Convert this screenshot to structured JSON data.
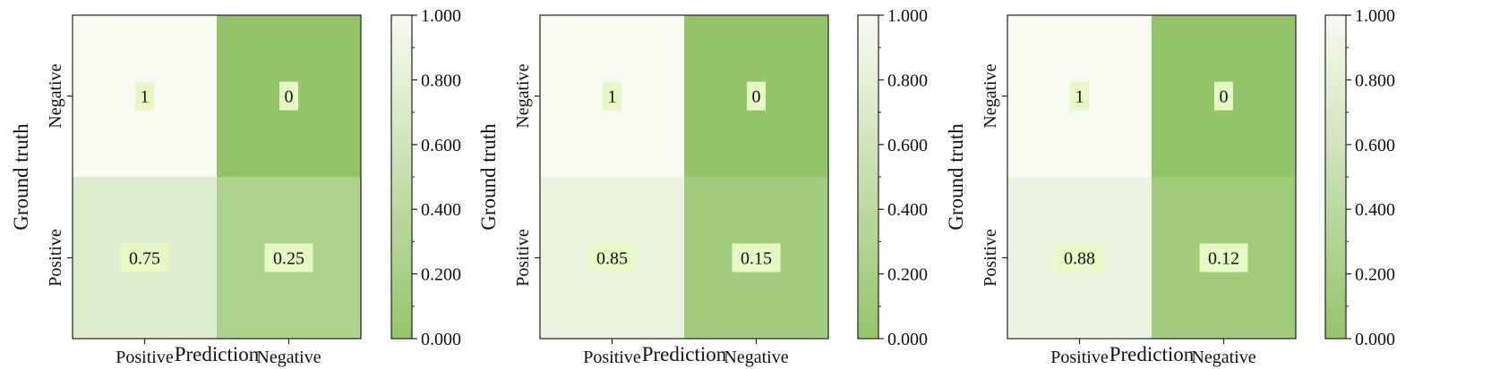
{
  "colors": {
    "low": "#94c46a",
    "high": "#f8fbf1",
    "label_bg": "#e6f8c4",
    "border": "#222222"
  },
  "chart_data": [
    {
      "type": "heatmap",
      "title": "",
      "xlabel": "Prediction",
      "ylabel": "Ground truth",
      "x_categories": [
        "Positive",
        "Negative"
      ],
      "y_categories": [
        "Negative",
        "Positive"
      ],
      "values": [
        [
          1,
          0
        ],
        [
          0.75,
          0.25
        ]
      ],
      "cell_labels": [
        [
          "1",
          "0"
        ],
        [
          "0.75",
          "0.25"
        ]
      ],
      "colorbar": {
        "range": [
          0,
          1
        ],
        "ticks": [
          "0.000",
          "0.200",
          "0.400",
          "0.600",
          "0.800",
          "1.000"
        ]
      }
    },
    {
      "type": "heatmap",
      "title": "",
      "xlabel": "Prediction",
      "ylabel": "Ground truth",
      "x_categories": [
        "Positive",
        "Negative"
      ],
      "y_categories": [
        "Negative",
        "Positive"
      ],
      "values": [
        [
          1,
          0
        ],
        [
          0.85,
          0.15
        ]
      ],
      "cell_labels": [
        [
          "1",
          "0"
        ],
        [
          "0.85",
          "0.15"
        ]
      ],
      "colorbar": {
        "range": [
          0,
          1
        ],
        "ticks": [
          "0.000",
          "0.200",
          "0.400",
          "0.600",
          "0.800",
          "1.000"
        ]
      }
    },
    {
      "type": "heatmap",
      "title": "",
      "xlabel": "Prediction",
      "ylabel": "Ground truth",
      "x_categories": [
        "Positive",
        "Negative"
      ],
      "y_categories": [
        "Negative",
        "Positive"
      ],
      "values": [
        [
          1,
          0
        ],
        [
          0.88,
          0.12
        ]
      ],
      "cell_labels": [
        [
          "1",
          "0"
        ],
        [
          "0.88",
          "0.12"
        ]
      ],
      "colorbar": {
        "range": [
          0,
          1
        ],
        "ticks": [
          "0.000",
          "0.200",
          "0.400",
          "0.600",
          "0.800",
          "1.000"
        ]
      }
    }
  ]
}
